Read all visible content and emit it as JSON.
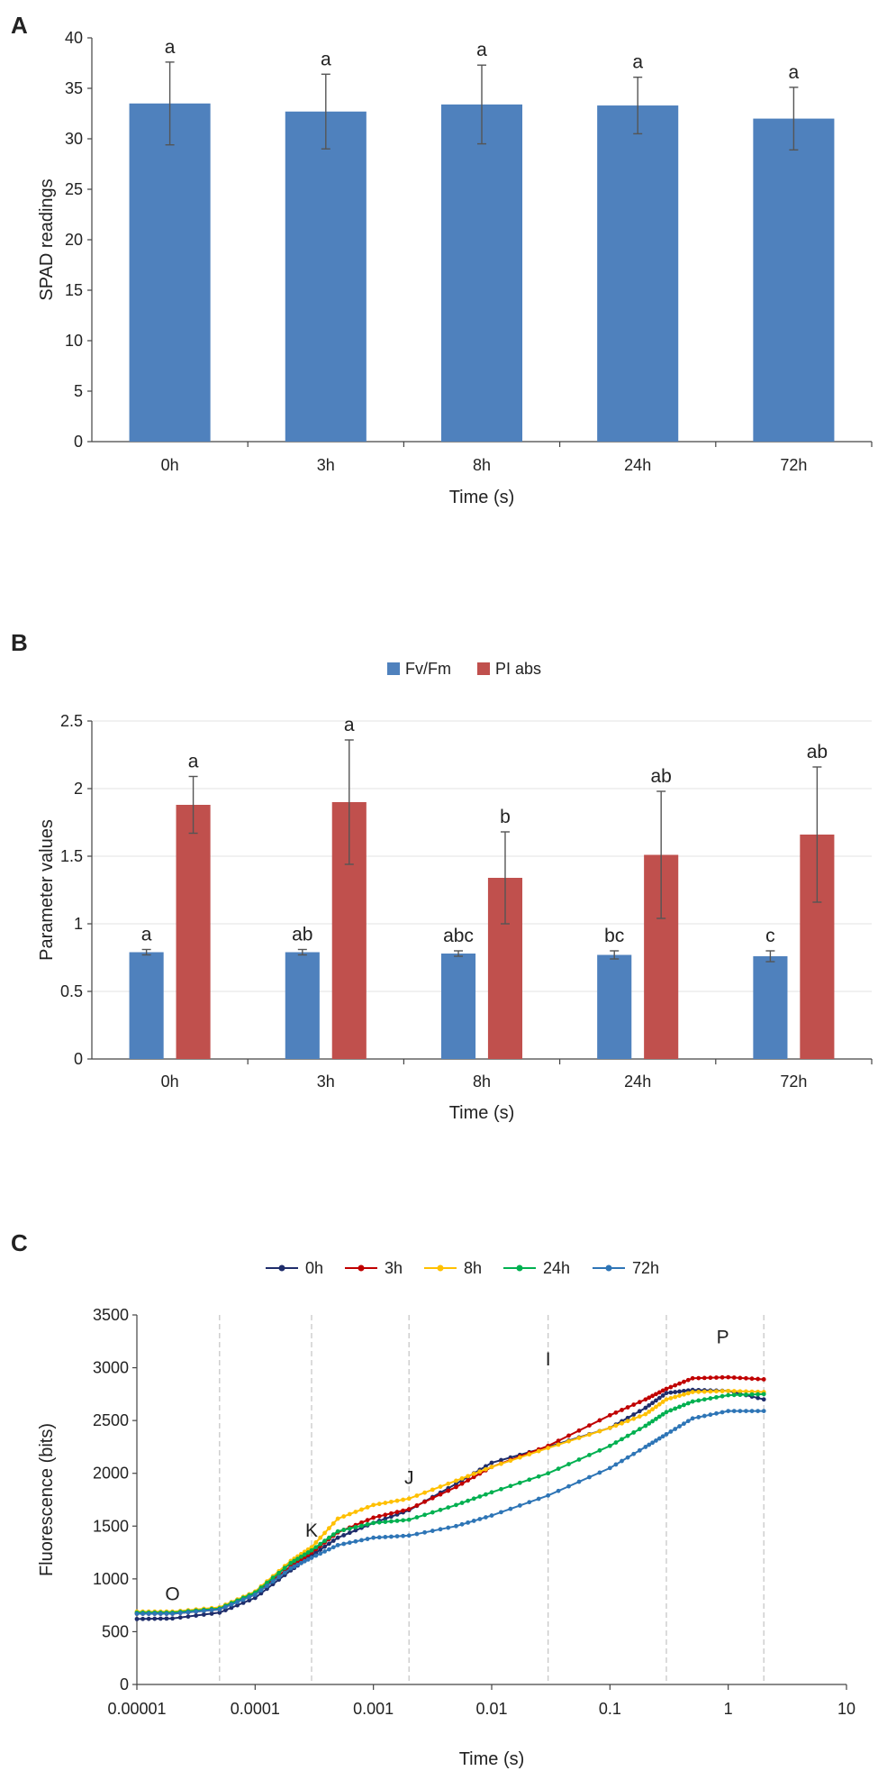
{
  "chart_data": [
    {
      "panel": "A",
      "type": "bar",
      "categories": [
        "0h",
        "3h",
        "8h",
        "24h",
        "72h"
      ],
      "series": [
        {
          "name": "SPAD",
          "color": "#4F81BD",
          "values": [
            33.5,
            32.7,
            33.4,
            33.3,
            32.0
          ],
          "errors": [
            4.1,
            3.7,
            3.9,
            2.8,
            3.1
          ],
          "labels": [
            "a",
            "a",
            "a",
            "a",
            "a"
          ]
        }
      ],
      "xlabel": "Time (s)",
      "ylabel": "SPAD readings",
      "ylim": [
        0,
        40
      ],
      "yticks": [
        0,
        5,
        10,
        15,
        20,
        25,
        30,
        35,
        40
      ],
      "ytick_labels": [
        "0",
        "5",
        "10",
        "15",
        "20",
        "25",
        "30",
        "35",
        "40"
      ],
      "grid": false
    },
    {
      "panel": "B",
      "type": "bar",
      "categories": [
        "0h",
        "3h",
        "8h",
        "24h",
        "72h"
      ],
      "series": [
        {
          "name": "Fv/Fm",
          "color": "#4F81BD",
          "values": [
            0.79,
            0.79,
            0.78,
            0.77,
            0.76
          ],
          "errors": [
            0.02,
            0.02,
            0.02,
            0.03,
            0.04
          ],
          "labels": [
            "a",
            "ab",
            "abc",
            "bc",
            "c"
          ]
        },
        {
          "name": "PI abs",
          "color": "#C0504D",
          "values": [
            1.88,
            1.9,
            1.34,
            1.51,
            1.66
          ],
          "errors": [
            0.21,
            0.46,
            0.34,
            0.47,
            0.5
          ],
          "labels": [
            "a",
            "a",
            "b",
            "ab",
            "ab"
          ]
        }
      ],
      "xlabel": "Time (s)",
      "ylabel": "Parameter values",
      "ylim": [
        0,
        2.5
      ],
      "yticks": [
        0,
        0.5,
        1,
        1.5,
        2,
        2.5
      ],
      "ytick_labels": [
        "0",
        "0.5",
        "1",
        "1.5",
        "2",
        "2.5"
      ],
      "legend_position": "top-center",
      "grid": true
    },
    {
      "panel": "C",
      "type": "line",
      "xscale": "log",
      "xlabel": "Time (s)",
      "ylabel": "Fluorescence (bits)",
      "xlim": [
        1e-05,
        10
      ],
      "ylim": [
        0,
        3500
      ],
      "xticks": [
        1e-05,
        0.0001,
        0.001,
        0.01,
        0.1,
        1,
        10
      ],
      "xtick_labels": [
        "0.00001",
        "0.0001",
        "0.001",
        "0.01",
        "0.1",
        "1",
        "10"
      ],
      "yticks": [
        0,
        500,
        1000,
        1500,
        2000,
        2500,
        3000,
        3500
      ],
      "ytick_labels": [
        "0",
        "500",
        "1000",
        "1500",
        "2000",
        "2500",
        "3000",
        "3500"
      ],
      "vlines": [
        5e-05,
        0.0003,
        0.002,
        0.03,
        0.3,
        2
      ],
      "phase_labels": [
        {
          "text": "O",
          "x": 2e-05,
          "y": 800
        },
        {
          "text": "K",
          "x": 0.0003,
          "y": 1400
        },
        {
          "text": "J",
          "x": 0.002,
          "y": 1900
        },
        {
          "text": "I",
          "x": 0.03,
          "y": 3020
        },
        {
          "text": "P",
          "x": 0.9,
          "y": 3230
        }
      ],
      "legend_position": "top-center",
      "series": [
        {
          "name": "0h",
          "color": "#1F2D6B",
          "points": [
            [
              1e-05,
              620
            ],
            [
              2e-05,
              625
            ],
            [
              5e-05,
              680
            ],
            [
              0.0001,
              820
            ],
            [
              0.0002,
              1080
            ],
            [
              0.0003,
              1220
            ],
            [
              0.0005,
              1390
            ],
            [
              0.001,
              1530
            ],
            [
              0.002,
              1650
            ],
            [
              0.005,
              1900
            ],
            [
              0.01,
              2100
            ],
            [
              0.03,
              2250
            ],
            [
              0.1,
              2430
            ],
            [
              0.2,
              2620
            ],
            [
              0.3,
              2760
            ],
            [
              0.5,
              2790
            ],
            [
              1,
              2780
            ],
            [
              2,
              2700
            ]
          ]
        },
        {
          "name": "3h",
          "color": "#C00000",
          "points": [
            [
              1e-05,
              670
            ],
            [
              2e-05,
              670
            ],
            [
              5e-05,
              710
            ],
            [
              0.0001,
              860
            ],
            [
              0.0002,
              1120
            ],
            [
              0.0003,
              1250
            ],
            [
              0.0005,
              1440
            ],
            [
              0.001,
              1580
            ],
            [
              0.002,
              1660
            ],
            [
              0.005,
              1870
            ],
            [
              0.01,
              2060
            ],
            [
              0.03,
              2260
            ],
            [
              0.1,
              2550
            ],
            [
              0.2,
              2700
            ],
            [
              0.3,
              2800
            ],
            [
              0.5,
              2900
            ],
            [
              1,
              2910
            ],
            [
              2,
              2890
            ]
          ]
        },
        {
          "name": "8h",
          "color": "#FFC000",
          "points": [
            [
              1e-05,
              690
            ],
            [
              2e-05,
              690
            ],
            [
              5e-05,
              730
            ],
            [
              0.0001,
              880
            ],
            [
              0.0002,
              1170
            ],
            [
              0.0003,
              1300
            ],
            [
              0.0005,
              1570
            ],
            [
              0.001,
              1700
            ],
            [
              0.002,
              1760
            ],
            [
              0.005,
              1930
            ],
            [
              0.01,
              2060
            ],
            [
              0.03,
              2240
            ],
            [
              0.1,
              2430
            ],
            [
              0.2,
              2560
            ],
            [
              0.3,
              2700
            ],
            [
              0.5,
              2770
            ],
            [
              1,
              2780
            ],
            [
              2,
              2770
            ]
          ]
        },
        {
          "name": "24h",
          "color": "#00B050",
          "points": [
            [
              1e-05,
              680
            ],
            [
              2e-05,
              680
            ],
            [
              5e-05,
              720
            ],
            [
              0.0001,
              870
            ],
            [
              0.0002,
              1150
            ],
            [
              0.0003,
              1270
            ],
            [
              0.0005,
              1450
            ],
            [
              0.001,
              1530
            ],
            [
              0.002,
              1560
            ],
            [
              0.005,
              1700
            ],
            [
              0.01,
              1820
            ],
            [
              0.03,
              2000
            ],
            [
              0.1,
              2260
            ],
            [
              0.2,
              2450
            ],
            [
              0.3,
              2580
            ],
            [
              0.5,
              2680
            ],
            [
              1,
              2740
            ],
            [
              2,
              2750
            ]
          ]
        },
        {
          "name": "72h",
          "color": "#2E75B6",
          "points": [
            [
              1e-05,
              670
            ],
            [
              2e-05,
              670
            ],
            [
              5e-05,
              710
            ],
            [
              0.0001,
              850
            ],
            [
              0.0002,
              1100
            ],
            [
              0.0003,
              1200
            ],
            [
              0.0005,
              1320
            ],
            [
              0.001,
              1390
            ],
            [
              0.002,
              1410
            ],
            [
              0.005,
              1500
            ],
            [
              0.01,
              1600
            ],
            [
              0.03,
              1790
            ],
            [
              0.1,
              2050
            ],
            [
              0.2,
              2250
            ],
            [
              0.3,
              2370
            ],
            [
              0.5,
              2520
            ],
            [
              1,
              2590
            ],
            [
              2,
              2590
            ]
          ]
        }
      ]
    }
  ]
}
